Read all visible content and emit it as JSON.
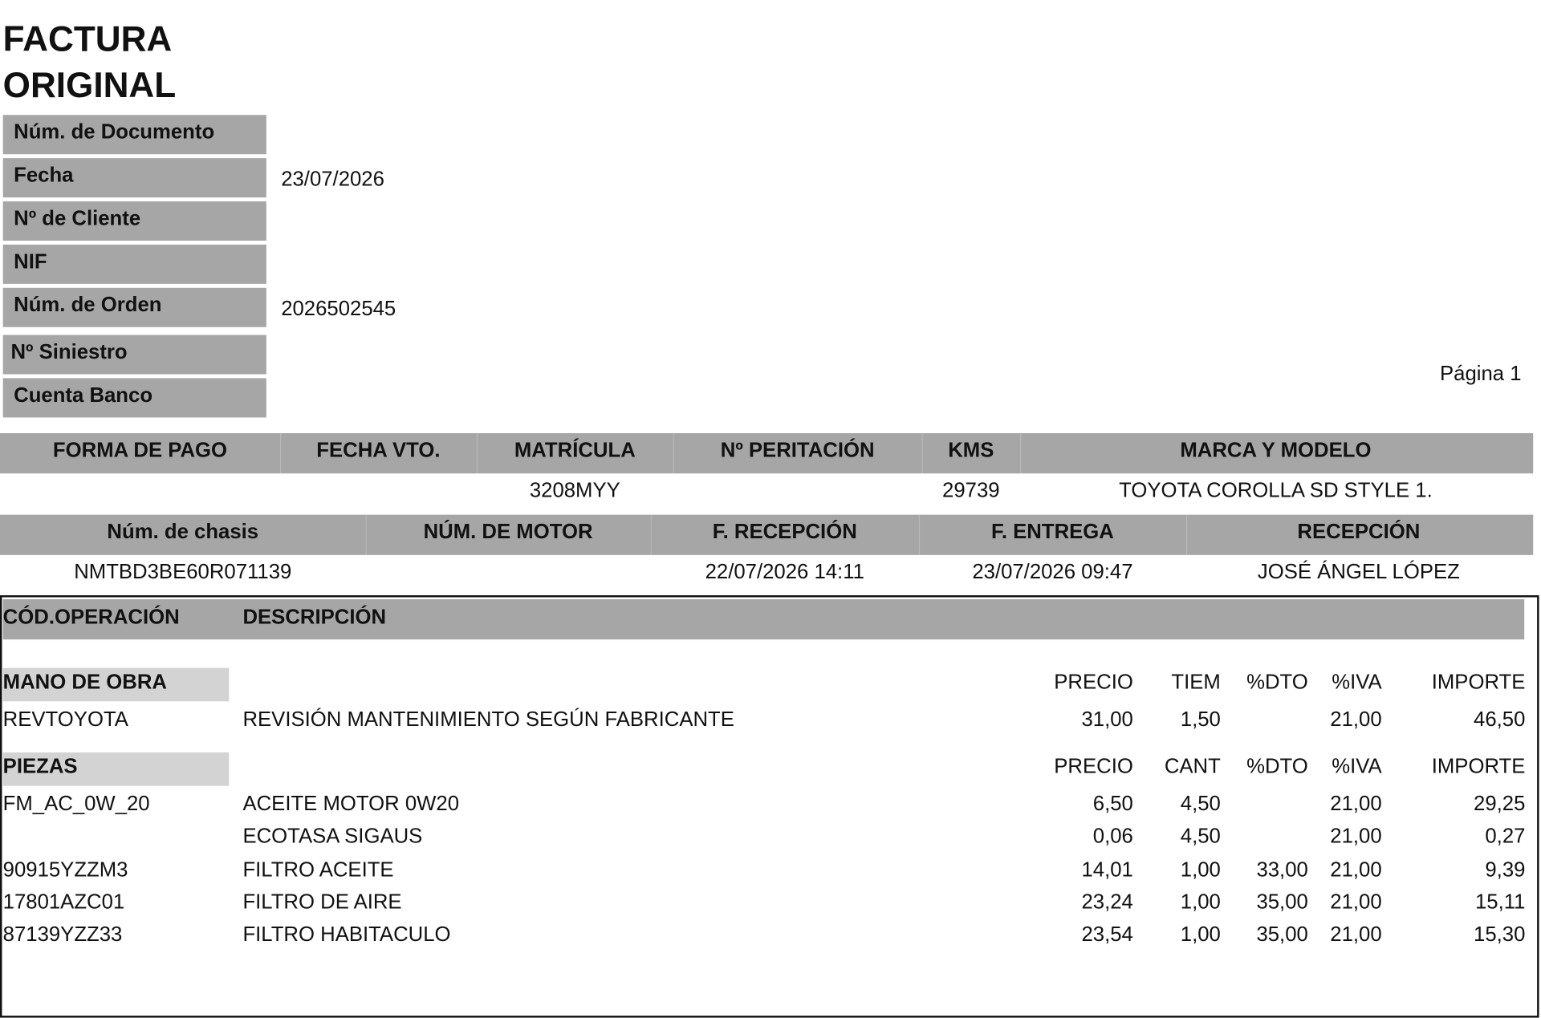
{
  "header": {
    "title_line1": "FACTURA",
    "title_line2": "ORIGINAL",
    "page": "Página 1"
  },
  "fields": [
    {
      "label": "Núm. de Documento"
    },
    {
      "label": "Fecha",
      "value": "23/07/2026"
    },
    {
      "label": "Nº de Cliente"
    },
    {
      "label": "NIF"
    },
    {
      "label": "Núm. de Orden",
      "value": "2026502545"
    },
    {
      "label": "Nº Siniestro"
    },
    {
      "label": "Cuenta Banco"
    }
  ],
  "vehicle_table": {
    "columns": [
      "FORMA DE PAGO",
      "FECHA VTO.",
      "MATRÍCULA",
      "Nº PERITACIÓN",
      "KMS",
      "MARCA Y MODELO"
    ],
    "values": [
      null,
      null,
      "3208MYY",
      null,
      "29739",
      "TOYOTA COROLLA SD STYLE 1."
    ]
  },
  "reception_table": {
    "columns": [
      "Núm. de chasis",
      "NÚM. DE MOTOR",
      "F. RECEPCIÓN",
      "F. ENTREGA",
      "RECEPCIÓN"
    ],
    "values": [
      "NMTBD3BE60R071139",
      null,
      "22/07/2026 14:11",
      "23/07/2026 09:47",
      "JOSÉ ÁNGEL LÓPEZ"
    ]
  },
  "operations": {
    "columns": [
      "CÓD.OPERACIÓN",
      "DESCRIPCIÓN"
    ],
    "sections": [
      {
        "title": "MANO DE OBRA",
        "columns": [
          "PRECIO",
          "TIEM",
          "%DTO",
          "%IVA",
          "IMPORTE"
        ],
        "rows": [
          {
            "code": "REVTOYOTA",
            "description": "REVISIÓN MANTENIMIENTO SEGÚN FABRICANTE",
            "values": [
              "31,00",
              "1,50",
              null,
              "21,00",
              "46,50"
            ]
          }
        ]
      },
      {
        "title": "PIEZAS",
        "columns": [
          "PRECIO",
          "CANT",
          "%DTO",
          "%IVA",
          "IMPORTE"
        ],
        "rows": [
          {
            "code": "FM_AC_0W_20",
            "description": "ACEITE MOTOR 0W20",
            "values": [
              "6,50",
              "4,50",
              null,
              "21,00",
              "29,25"
            ]
          },
          {
            "code": null,
            "description": "ECOTASA SIGAUS",
            "values": [
              "0,06",
              "4,50",
              null,
              "21,00",
              "0,27"
            ]
          },
          {
            "code": "90915YZZM3",
            "description": "FILTRO ACEITE",
            "values": [
              "14,01",
              "1,00",
              "33,00",
              "21,00",
              "9,39"
            ]
          },
          {
            "code": "17801AZC01",
            "description": "FILTRO DE AIRE",
            "values": [
              "23,24",
              "1,00",
              "35,00",
              "21,00",
              "15,11"
            ]
          },
          {
            "code": "87139YZZ33",
            "description": "FILTRO HABITACULO",
            "values": [
              "23,54",
              "1,00",
              "35,00",
              "21,00",
              "15,30"
            ]
          }
        ]
      }
    ]
  }
}
